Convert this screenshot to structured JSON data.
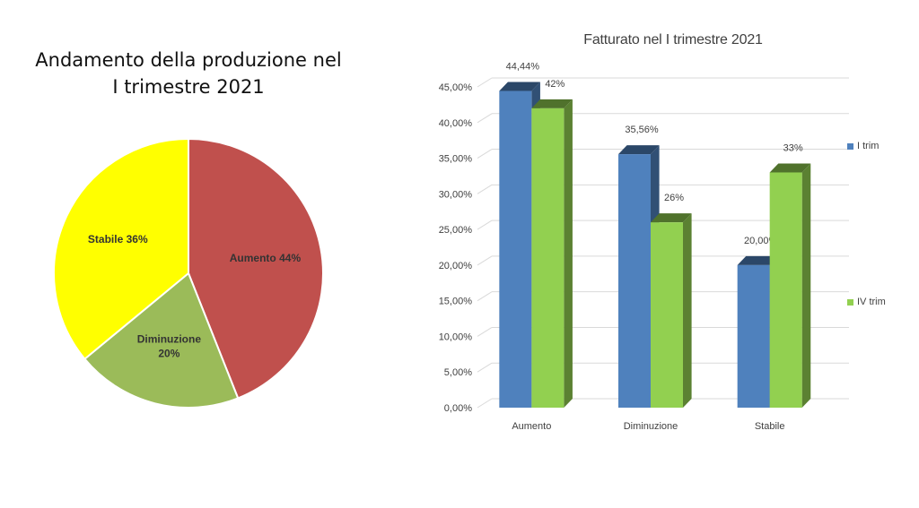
{
  "chart_data": [
    {
      "type": "pie",
      "title_lines": [
        "Andamento della produzione nel",
        "I trimestre 2021"
      ],
      "slices": [
        {
          "label": "Aumento",
          "value": 44,
          "display": "Aumento 44%",
          "color": "#c0504d"
        },
        {
          "label": "Diminuzione",
          "value": 20,
          "display_lines": [
            "Diminuzione",
            "20%"
          ],
          "color": "#9bbb59"
        },
        {
          "label": "Stabile",
          "value": 36,
          "display": "Stabile 36%",
          "color": "#ffff00"
        }
      ]
    },
    {
      "type": "bar",
      "title": "Fatturato nel I trimestre 2021",
      "categories": [
        "Aumento",
        "Diminuzione",
        "Stabile"
      ],
      "ylim": [
        0,
        45
      ],
      "y_ticks": [
        "0,00%",
        "5,00%",
        "10,00%",
        "15,00%",
        "20,00%",
        "25,00%",
        "30,00%",
        "35,00%",
        "40,00%",
        "45,00%"
      ],
      "grid": true,
      "legend_position": "right",
      "series": [
        {
          "name": "I trim",
          "color": "#4f81bd",
          "values": [
            44.44,
            35.56,
            20.0
          ],
          "labels": [
            "44,44%",
            "35,56%",
            "20,00%"
          ]
        },
        {
          "name": "IV trim",
          "color": "#92d050",
          "values": [
            42,
            26,
            33
          ],
          "labels": [
            "42%",
            "26%",
            "33%"
          ]
        }
      ]
    }
  ]
}
